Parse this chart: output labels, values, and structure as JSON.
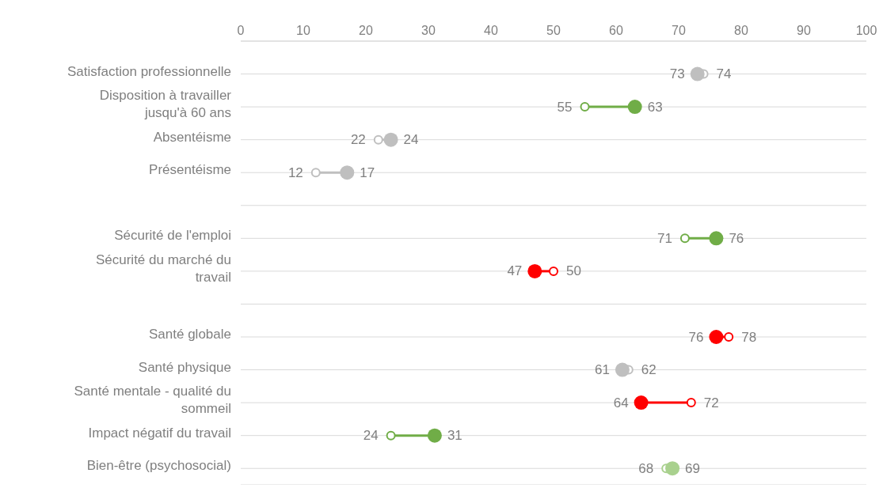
{
  "chart_data": {
    "type": "scatter",
    "orientation": "horizontal",
    "categories": [
      "Satisfaction professionnelle",
      "Disposition à travailler jusqu'à 60 ans",
      "Absentéisme",
      "Présentéisme",
      null,
      "Sécurité de l'emploi",
      "Sécurité du marché du travail",
      null,
      "Santé globale",
      "Santé physique",
      "Santé mentale - qualité du sommeil",
      "Impact négatif du travail",
      "Bien-être (psychosocial)"
    ],
    "series": [
      {
        "marker": "circle",
        "colors": [
          "#bfbfbf",
          "#70ad47",
          "#bfbfbf",
          "#bfbfbf",
          null,
          "#70ad47",
          "#ff0000",
          null,
          "#ff0000",
          "#bfbfbf",
          "#ff0000",
          "#70ad47",
          "#a9d18e"
        ],
        "values": [
          74,
          55,
          22,
          12,
          null,
          71,
          50,
          null,
          78,
          62,
          72,
          24,
          68
        ]
      },
      {
        "marker": "circle",
        "colors": [
          "#bfbfbf",
          "#70ad47",
          "#bfbfbf",
          "#bfbfbf",
          null,
          "#70ad47",
          "#ff0000",
          null,
          "#ff0000",
          "#bfbfbf",
          "#ff0000",
          "#70ad47",
          "#a9d18e"
        ],
        "values": [
          73,
          63,
          24,
          17,
          null,
          76,
          47,
          null,
          76,
          61,
          64,
          31,
          69
        ]
      }
    ],
    "xlim": [
      0,
      100
    ],
    "xticks": [
      0,
      10,
      20,
      30,
      40,
      50,
      60,
      70,
      80,
      90,
      100
    ],
    "grid": "y",
    "data_labels": true,
    "legend": false
  }
}
